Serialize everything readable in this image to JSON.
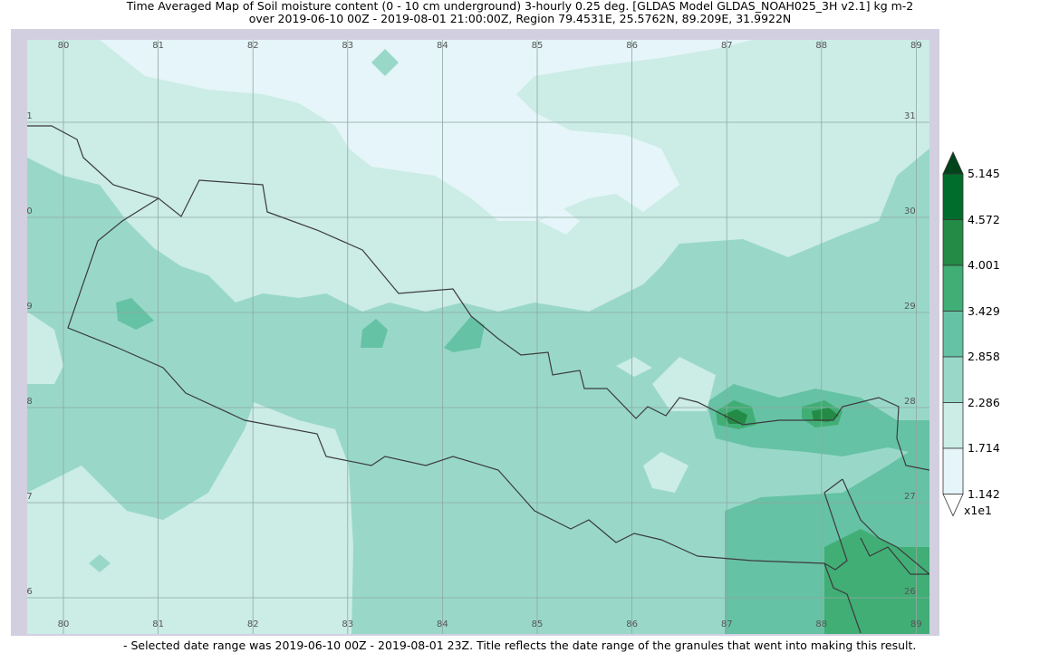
{
  "title": {
    "line1": "Time Averaged Map of Soil moisture content (0 - 10 cm underground) 3-hourly 0.25 deg. [GLDAS Model GLDAS_NOAH025_3H v2.1] kg m-2",
    "line2": "over 2019-06-10 00Z - 2019-08-01 21:00:00Z, Region 79.4531E, 25.5762N, 89.209E, 31.9922N"
  },
  "footer": "- Selected date range was 2019-06-10 00Z - 2019-08-01 23Z. Title reflects the date range of the granules that went into making this result.",
  "map": {
    "lon_ticks": [
      "80",
      "81",
      "82",
      "83",
      "84",
      "85",
      "86",
      "87",
      "88",
      "89"
    ],
    "lat_ticks": [
      "31",
      "30",
      "29",
      "28",
      "27",
      "26"
    ]
  },
  "colorbar": {
    "labels": [
      "5.145",
      "4.572",
      "4.001",
      "3.429",
      "2.858",
      "2.286",
      "1.714",
      "1.142"
    ],
    "scale": "x1e1",
    "colors": [
      "#006d2c",
      "#238b45",
      "#41ae76",
      "#66c2a4",
      "#99d8c9",
      "#ccece6",
      "#e5f5f9"
    ]
  }
}
